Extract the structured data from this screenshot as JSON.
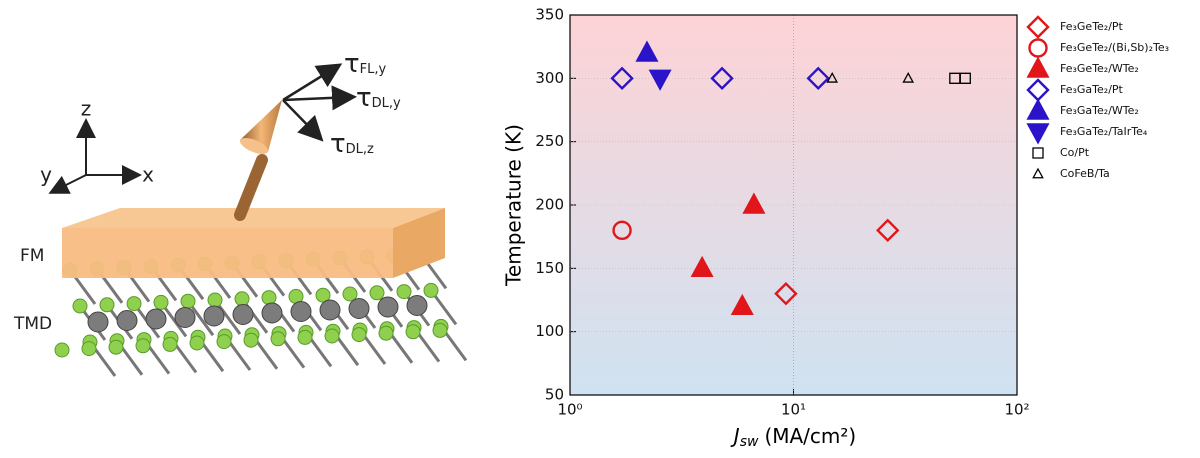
{
  "diagram": {
    "axes": {
      "z": "z",
      "y": "y",
      "x": "x"
    },
    "layers": {
      "fm": "FM",
      "tmd": "TMD"
    },
    "torques": [
      {
        "symbol": "τ",
        "sub": "FL,y"
      },
      {
        "symbol": "τ",
        "sub": "DL,y"
      },
      {
        "symbol": "τ",
        "sub": "DL,z"
      }
    ]
  },
  "chart_data": {
    "type": "scatter",
    "xlabel": {
      "symbol": "J",
      "sub": "sw",
      "unit": "(MA/cm²)"
    },
    "ylabel": "Temperature (K)",
    "xscale": "log",
    "xlim": [
      1,
      100
    ],
    "xticks": [
      {
        "value": 1,
        "label": "10⁰"
      },
      {
        "value": 10,
        "label": "10¹"
      },
      {
        "value": 100,
        "label": "10²"
      }
    ],
    "ylim": [
      50,
      350
    ],
    "yticks": [
      50,
      100,
      150,
      200,
      250,
      300,
      350
    ],
    "grid": true,
    "legend": "outside-right",
    "series": [
      {
        "name": "Fe₃GeTe₂/Pt",
        "color": "#e0161b",
        "marker": "diamond",
        "filled": false,
        "small": false,
        "x": [
          26.4,
          9.25
        ],
        "values": [
          180,
          130
        ]
      },
      {
        "name": "Fe₃GeTe₂/(Bi,Sb)₂Te₃",
        "color": "#e0161b",
        "marker": "circle",
        "filled": false,
        "small": false,
        "x": [
          1.71
        ],
        "values": [
          180
        ]
      },
      {
        "name": "Fe₃GeTe₂/WTe₂",
        "color": "#e0161b",
        "marker": "triangle-up",
        "filled": true,
        "small": false,
        "x": [
          3.9,
          5.9,
          6.65
        ],
        "values": [
          150,
          120,
          200
        ]
      },
      {
        "name": "Fe₃GaTe₂/Pt",
        "color": "#2a13c8",
        "marker": "diamond",
        "filled": false,
        "small": false,
        "x": [
          1.71,
          4.79,
          12.9
        ],
        "values": [
          300,
          300,
          300
        ]
      },
      {
        "name": "Fe₃GaTe₂/WTe₂",
        "color": "#2a13c8",
        "marker": "triangle-up",
        "filled": true,
        "small": false,
        "x": [
          2.21
        ],
        "values": [
          320
        ]
      },
      {
        "name": "Fe₃GaTe₂/TaIrTe₄",
        "color": "#2a13c8",
        "marker": "triangle-down",
        "filled": true,
        "small": false,
        "x": [
          2.53
        ],
        "values": [
          300
        ]
      },
      {
        "name": "Co/Pt",
        "color": "#000000",
        "marker": "square",
        "filled": false,
        "small": true,
        "x": [
          52.7,
          58.7
        ],
        "values": [
          300,
          300
        ]
      },
      {
        "name": "CoFeB/Ta",
        "color": "#000000",
        "marker": "triangle-up",
        "filled": false,
        "small": true,
        "x": [
          14.9,
          32.6
        ],
        "values": [
          300,
          300
        ]
      }
    ]
  }
}
